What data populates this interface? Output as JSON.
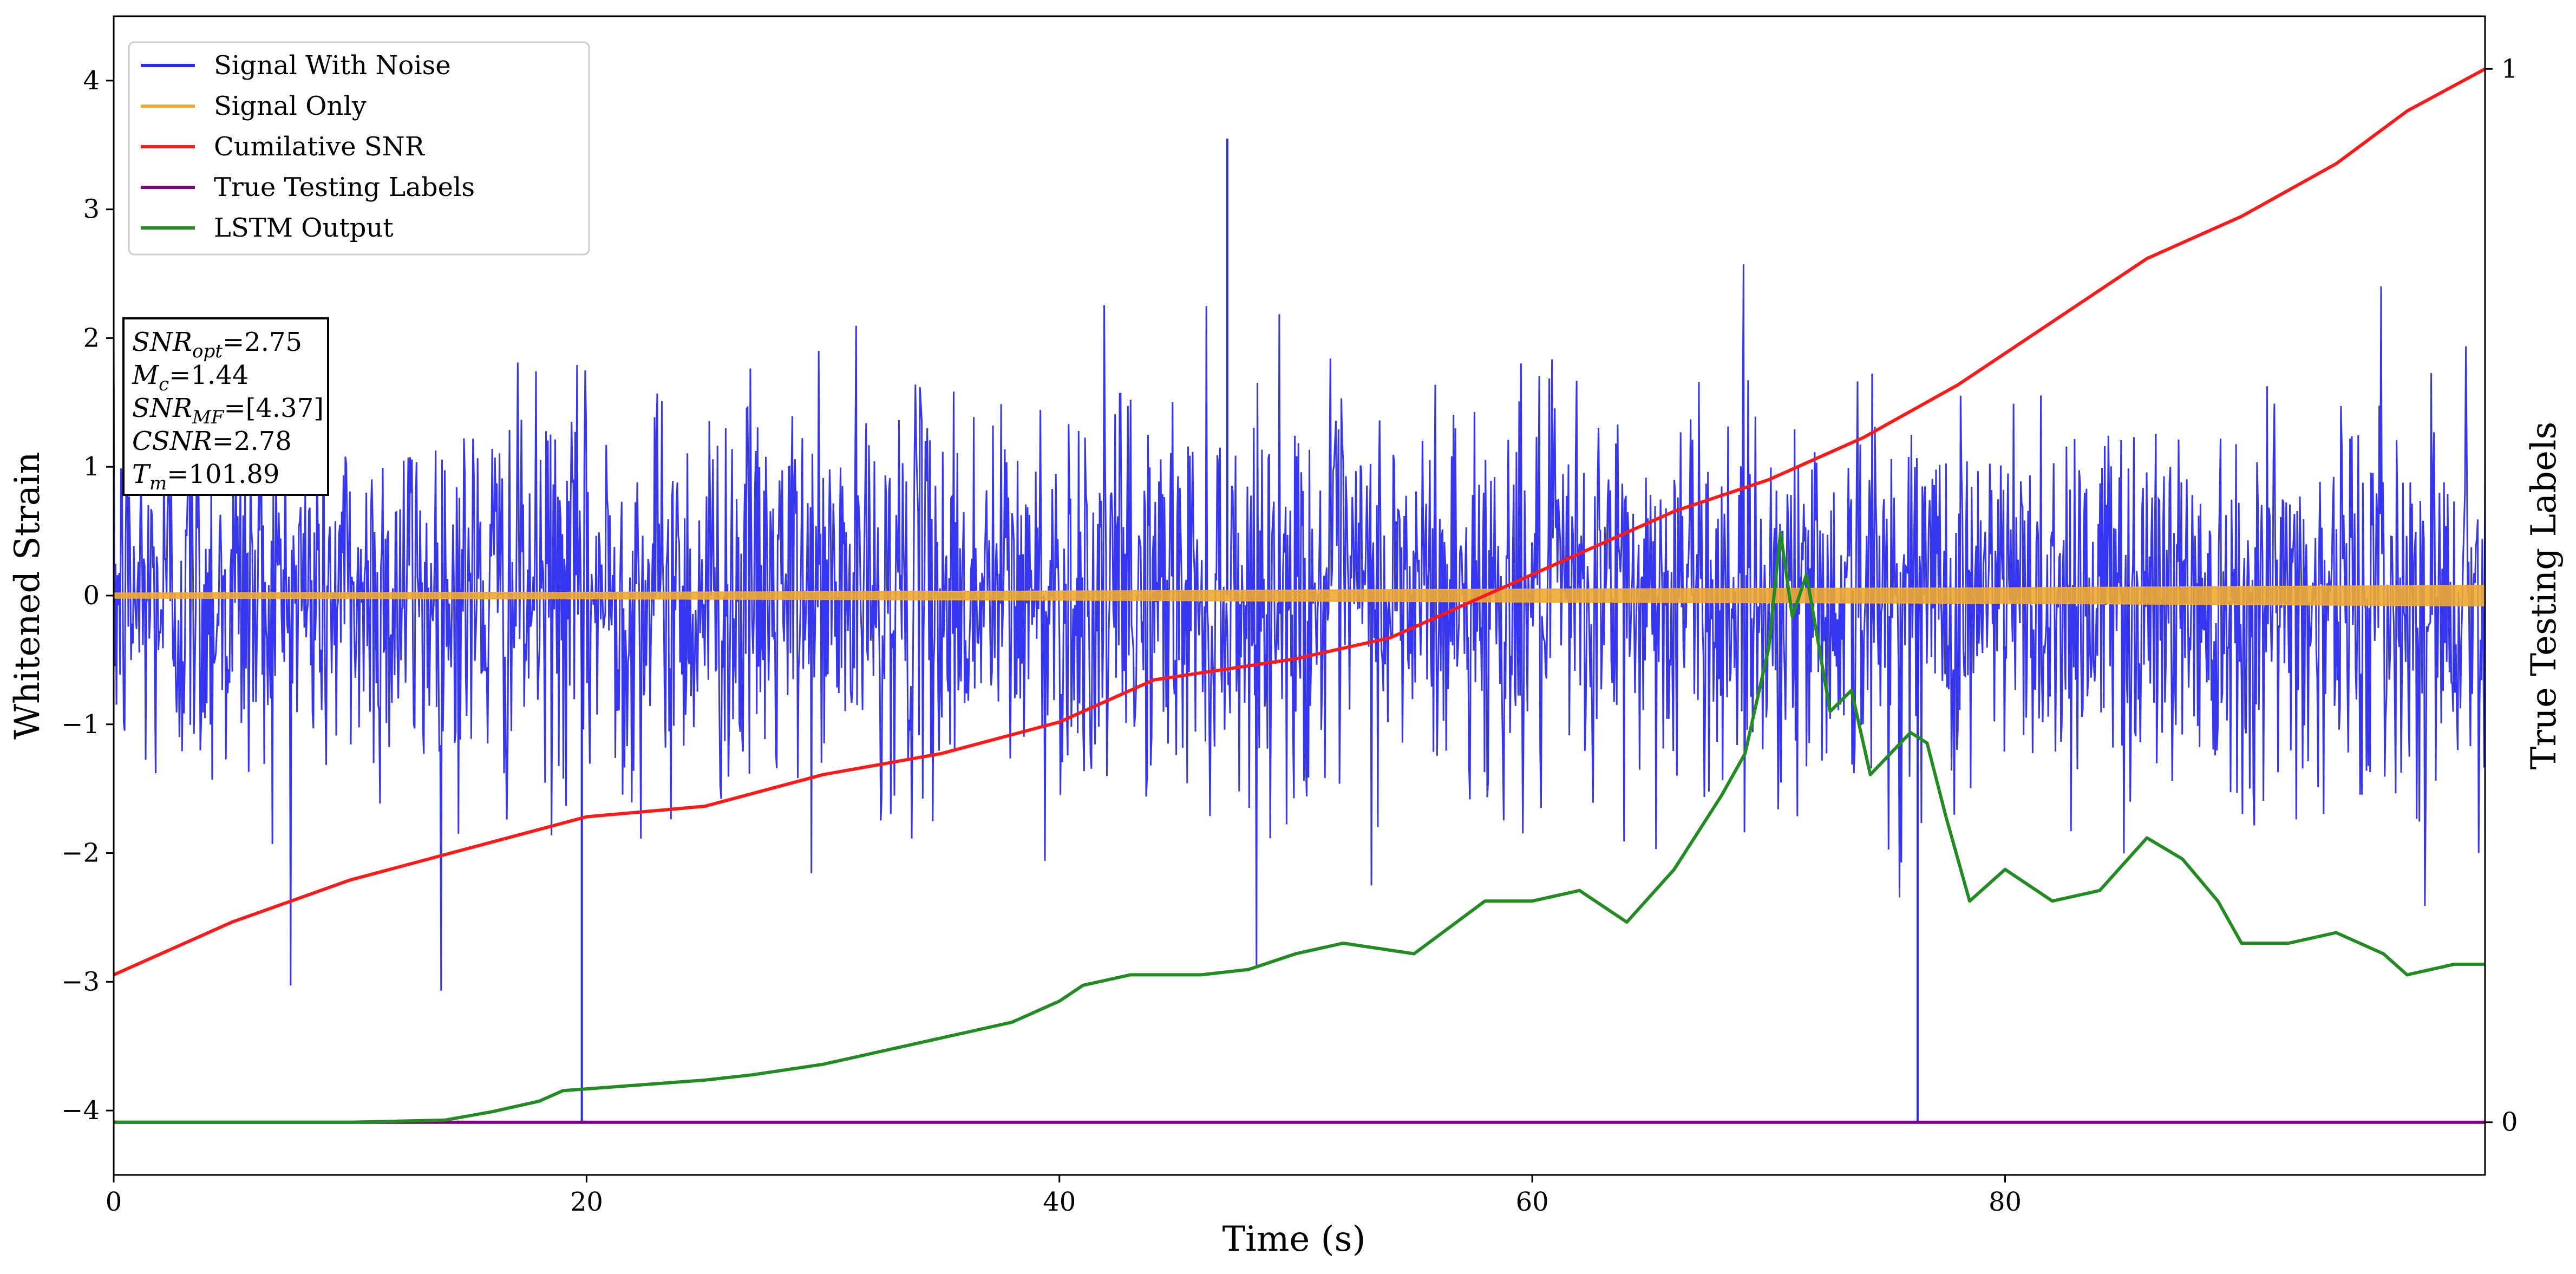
{
  "chart_data": {
    "type": "line",
    "xlabel": "Time (s)",
    "ylabel": "Whitened Strain",
    "y2label": "True Testing Labels",
    "xlim": [
      0,
      100.3
    ],
    "ylim": [
      -4.5,
      4.5
    ],
    "y2lim": [
      -0.05,
      1.05
    ],
    "x_ticks": [
      0,
      20,
      40,
      60,
      80
    ],
    "y_ticks": [
      -4,
      -3,
      -2,
      -1,
      0,
      1,
      2,
      3,
      4
    ],
    "y2_ticks": [
      0,
      1
    ],
    "grid": false,
    "legend_position": "top-left",
    "annotation": {
      "lines": [
        {
          "var": "SNR",
          "sub": "opt",
          "val": "=2.75"
        },
        {
          "var": "M",
          "sub": "c",
          "val": "=1.44"
        },
        {
          "var": "SNR",
          "sub": "MF",
          "val": "=[4.37]"
        },
        {
          "var": "CSNR",
          "sub": "",
          "val": "=2.78"
        },
        {
          "var": "T",
          "sub": "m",
          "val": "=101.89"
        }
      ]
    },
    "series": [
      {
        "name": "Signal With Noise",
        "color": "#2b2bf0",
        "axis": "left",
        "kind": "noise",
        "envelope_x": [
          0,
          20,
          40,
          60,
          80,
          100.3
        ],
        "envelope_y_upper": [
          2.8,
          2.9,
          3.3,
          3.1,
          3.0,
          2.7
        ],
        "envelope_y_lower": [
          -3.0,
          -3.1,
          -3.0,
          -3.0,
          -3.1,
          -2.8
        ],
        "peaks": [
          {
            "x": 19.8,
            "y": -4.1
          },
          {
            "x": 76.3,
            "y": -4.1
          },
          {
            "x": 47.1,
            "y": 3.55
          }
        ]
      },
      {
        "name": "Signal Only",
        "color": "#f0a830",
        "axis": "left",
        "kind": "band",
        "x": [
          0,
          20,
          40,
          60,
          80,
          100.3
        ],
        "amplitude": [
          0.02,
          0.025,
          0.035,
          0.05,
          0.06,
          0.08
        ]
      },
      {
        "name": "Cumilative SNR",
        "color": "#ff1a1a",
        "axis": "right",
        "x": [
          0,
          5,
          10,
          15,
          20,
          25,
          30,
          35,
          40,
          44,
          50,
          54,
          58,
          62,
          66,
          70,
          74,
          78,
          82,
          86,
          90,
          94,
          97,
          100.3
        ],
        "y": [
          0.14,
          0.19,
          0.23,
          0.26,
          0.29,
          0.3,
          0.33,
          0.35,
          0.38,
          0.42,
          0.44,
          0.46,
          0.5,
          0.54,
          0.58,
          0.61,
          0.65,
          0.7,
          0.76,
          0.82,
          0.86,
          0.91,
          0.96,
          1.0
        ]
      },
      {
        "name": "True Testing Labels",
        "color": "#800080",
        "axis": "right",
        "x": [
          0,
          100.3
        ],
        "y": [
          0,
          0
        ]
      },
      {
        "name": "LSTM Output",
        "color": "#228b22",
        "axis": "right",
        "x": [
          0,
          10,
          14,
          16,
          18,
          19,
          22,
          25,
          27,
          30,
          35,
          38,
          40,
          41,
          43,
          46,
          48,
          50,
          52,
          55,
          58,
          60,
          62,
          64,
          66,
          68,
          69,
          70,
          70.5,
          71,
          71.6,
          72.6,
          73.5,
          74.3,
          76,
          76.7,
          77.5,
          78.5,
          80,
          82,
          84,
          86,
          87.5,
          89,
          90,
          92,
          94,
          96,
          97,
          99,
          100.3
        ],
        "y": [
          0,
          0,
          0.002,
          0.01,
          0.02,
          0.03,
          0.035,
          0.04,
          0.045,
          0.055,
          0.08,
          0.095,
          0.115,
          0.13,
          0.14,
          0.14,
          0.145,
          0.16,
          0.17,
          0.16,
          0.21,
          0.21,
          0.22,
          0.19,
          0.24,
          0.31,
          0.35,
          0.45,
          0.56,
          0.48,
          0.52,
          0.39,
          0.41,
          0.33,
          0.37,
          0.36,
          0.29,
          0.21,
          0.24,
          0.21,
          0.22,
          0.27,
          0.25,
          0.21,
          0.17,
          0.17,
          0.18,
          0.16,
          0.14,
          0.15,
          0.15
        ]
      }
    ]
  }
}
